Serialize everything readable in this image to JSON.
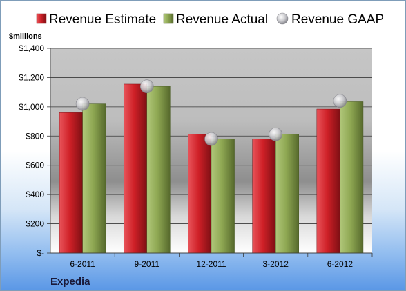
{
  "chart_data": {
    "type": "bar",
    "company": "Expedia",
    "ylabel": "$millions",
    "categories": [
      "6-2011",
      "9-2011",
      "12-2011",
      "3-2012",
      "6-2012"
    ],
    "series": [
      {
        "name": "Revenue Estimate",
        "kind": "bar",
        "color": "#d0252b",
        "values": [
          960,
          1155,
          812,
          780,
          985
        ]
      },
      {
        "name": "Revenue Actual",
        "kind": "bar",
        "color": "#8fa853",
        "values": [
          1020,
          1140,
          780,
          812,
          1035
        ]
      },
      {
        "name": "Revenue GAAP",
        "kind": "marker",
        "color": "#c8c8cc",
        "values": [
          1020,
          1140,
          780,
          812,
          1040
        ]
      }
    ],
    "ylim": [
      0,
      1400
    ],
    "yticks": [
      0,
      200,
      400,
      600,
      800,
      1000,
      1200,
      1400
    ],
    "ytick_labels": [
      "$-",
      "$200",
      "$400",
      "$600",
      "$800",
      "$1,000",
      "$1,200",
      "$1,400"
    ],
    "grid": true,
    "legend": "top"
  }
}
